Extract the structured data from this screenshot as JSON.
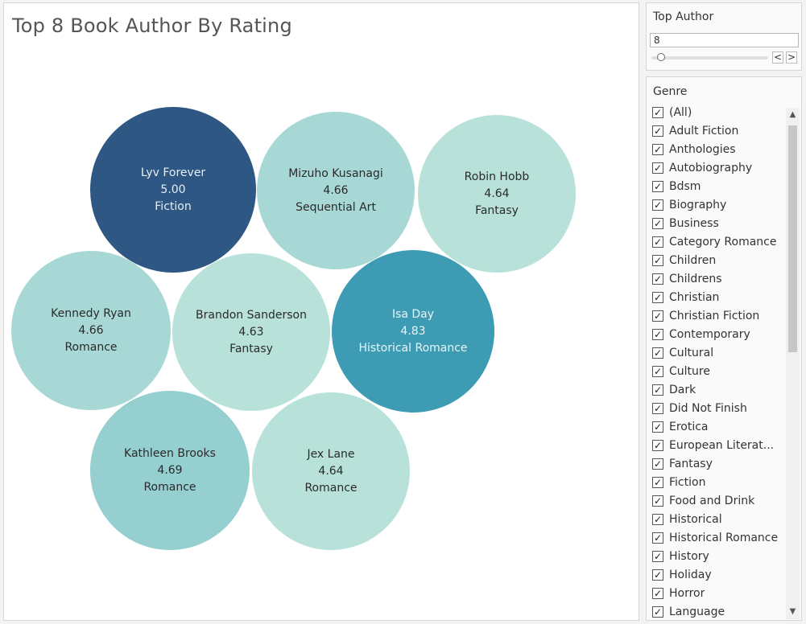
{
  "viz": {
    "title": "Top 8 Book Author By Rating",
    "bubbles": [
      {
        "author": "Lyv Forever",
        "rating": "5.00",
        "genre": "Fiction",
        "color": "#2e5783",
        "text_color": "#e6eef6"
      },
      {
        "author": "Mizuho Kusanagi",
        "rating": "4.66",
        "genre": "Sequential Art",
        "color": "#a8d8d5",
        "text_color": "#2a2a2a"
      },
      {
        "author": "Robin Hobb",
        "rating": "4.64",
        "genre": "Fantasy",
        "color": "#b8e2d9",
        "text_color": "#2a2a2a"
      },
      {
        "author": "Kennedy Ryan",
        "rating": "4.66",
        "genre": "Romance",
        "color": "#a8d8d5",
        "text_color": "#2a2a2a"
      },
      {
        "author": "Brandon Sanderson",
        "rating": "4.63",
        "genre": "Fantasy",
        "color": "#b8e2d9",
        "text_color": "#2a2a2a"
      },
      {
        "author": "Isa Day",
        "rating": "4.83",
        "genre": "Historical Romance",
        "color": "#3e9bb4",
        "text_color": "#e8f4f7"
      },
      {
        "author": "Kathleen Brooks",
        "rating": "4.69",
        "genre": "Romance",
        "color": "#96cfd0",
        "text_color": "#2a2a2a"
      },
      {
        "author": "Jex Lane",
        "rating": "4.64",
        "genre": "Romance",
        "color": "#b8e2d9",
        "text_color": "#2a2a2a"
      }
    ]
  },
  "top_author": {
    "title": "Top Author",
    "value": "8",
    "slider_fraction": 0.05,
    "prev_label": "<",
    "next_label": ">"
  },
  "genre_filter": {
    "title": "Genre",
    "items": [
      "(All)",
      "Adult Fiction",
      "Anthologies",
      "Autobiography",
      "Bdsm",
      "Biography",
      "Business",
      "Category Romance",
      "Children",
      "Childrens",
      "Christian",
      "Christian Fiction",
      "Contemporary",
      "Cultural",
      "Culture",
      "Dark",
      "Did Not Finish",
      "Erotica",
      "European Literat...",
      "Fantasy",
      "Fiction",
      "Food and Drink",
      "Historical",
      "Historical Romance",
      "History",
      "Holiday",
      "Horror",
      "Language"
    ],
    "check_mark": "✓"
  }
}
